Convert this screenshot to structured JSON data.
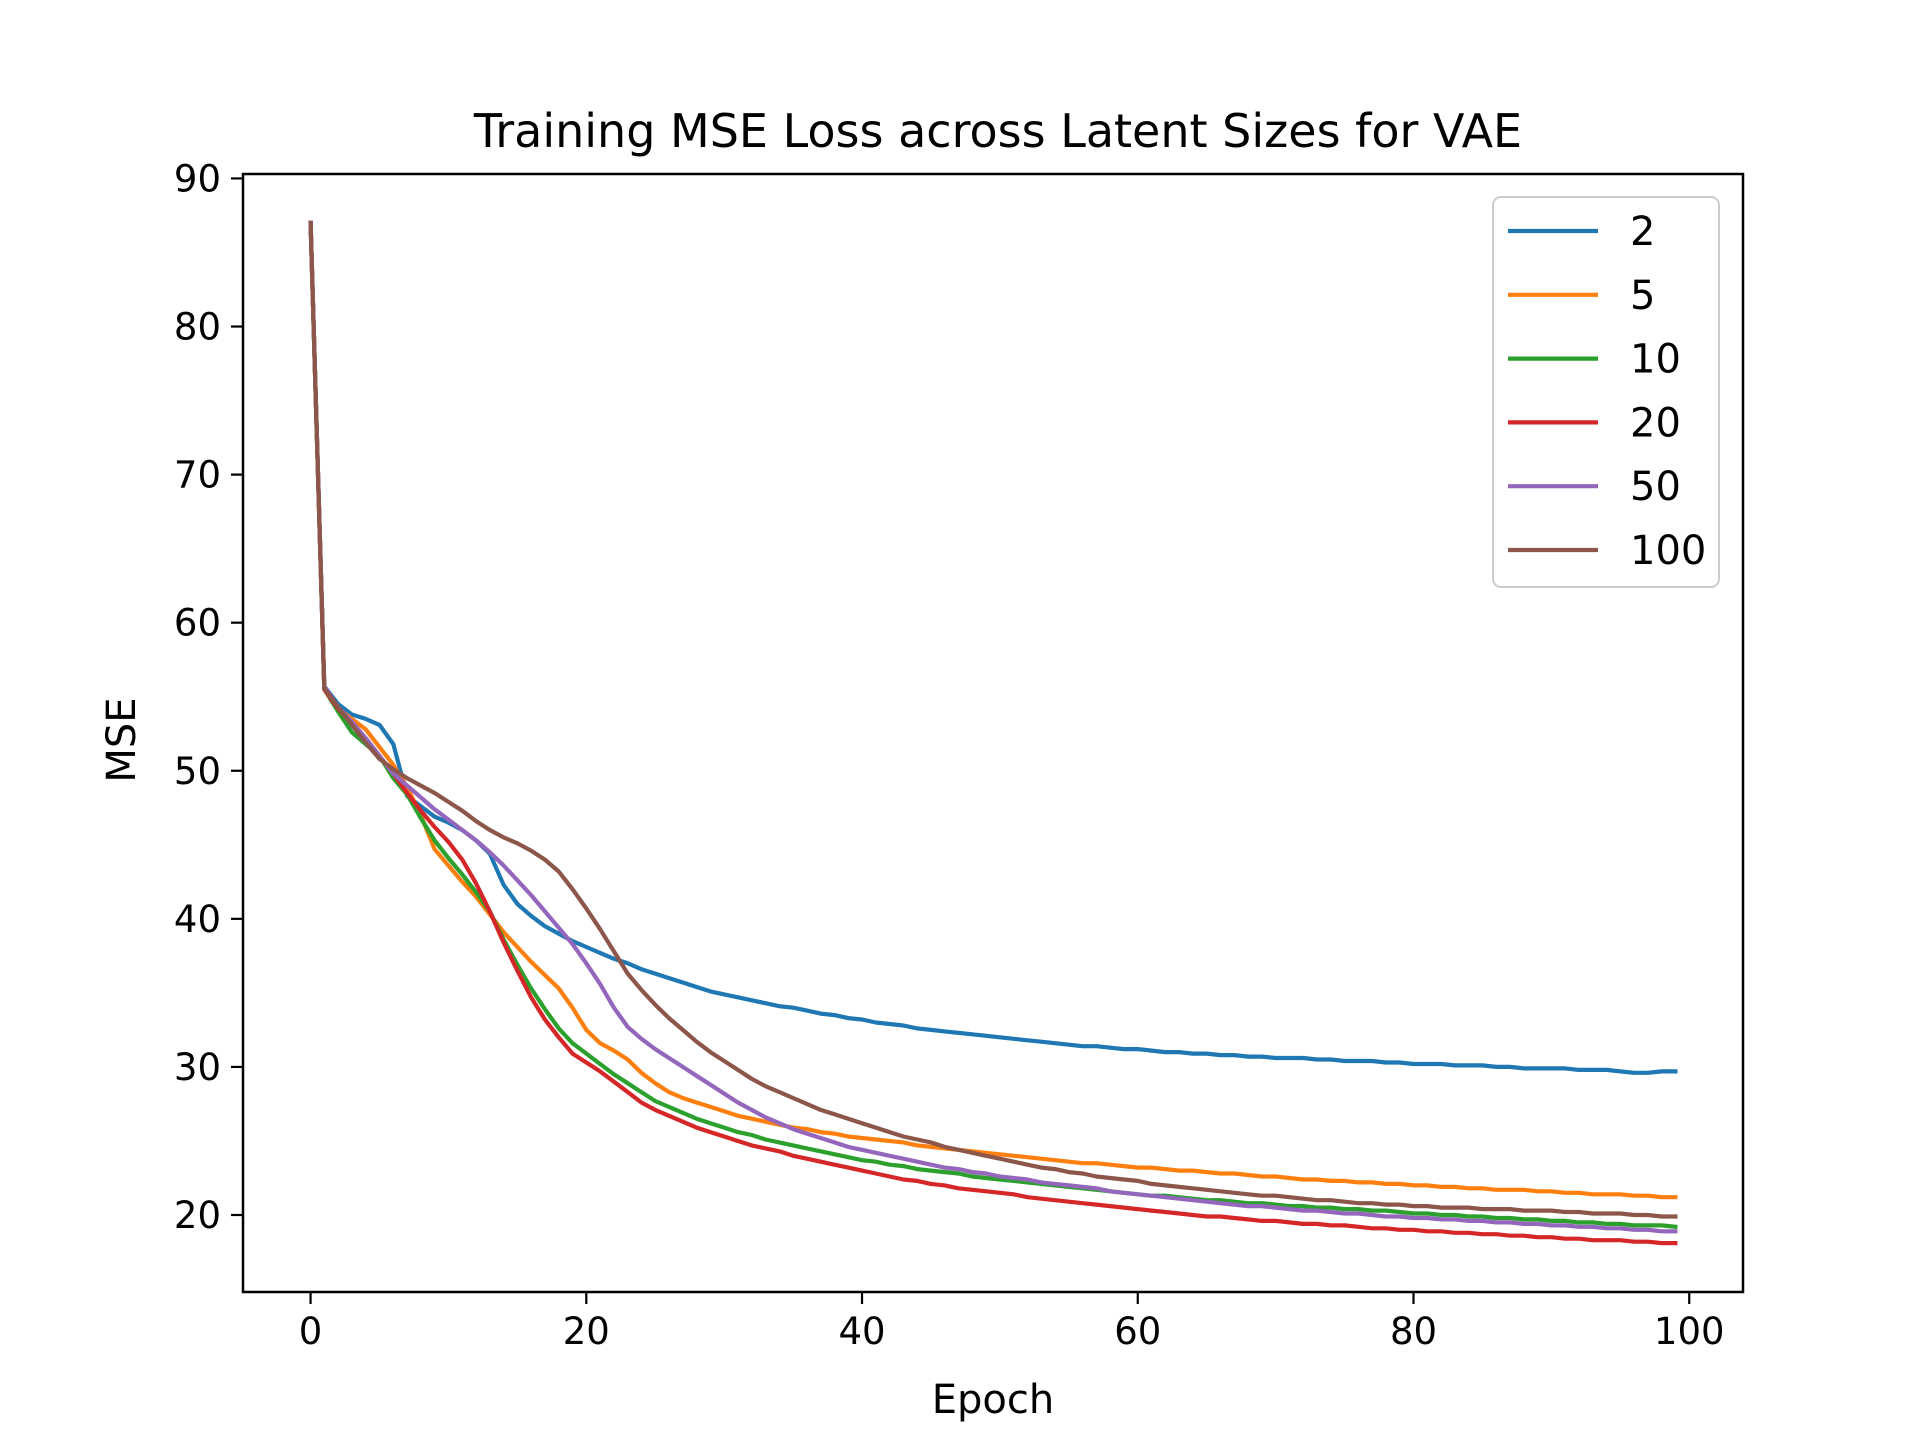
{
  "chart_data": {
    "type": "line",
    "title": "Training MSE Loss across Latent Sizes for VAE",
    "xlabel": "Epoch",
    "ylabel": "MSE",
    "xlim": [
      -4.9,
      103.9
    ],
    "ylim": [
      14.8,
      90.3
    ],
    "xticks": [
      0,
      20,
      40,
      60,
      80,
      100
    ],
    "yticks": [
      20,
      30,
      40,
      50,
      60,
      70,
      80,
      90
    ],
    "grid": false,
    "legend_position": "top-right",
    "x": {
      "start": 0,
      "end": 99,
      "step": 1
    },
    "series": [
      {
        "name": "2",
        "color": "#1f77b4",
        "values": [
          87.0,
          55.7,
          54.5,
          53.8,
          53.5,
          53.1,
          51.8,
          48.3,
          47.6,
          46.9,
          46.5,
          46.0,
          45.3,
          44.4,
          42.3,
          41.0,
          40.2,
          39.5,
          39.0,
          38.5,
          38.1,
          37.7,
          37.3,
          37.0,
          36.6,
          36.3,
          36.0,
          35.7,
          35.4,
          35.1,
          34.9,
          34.7,
          34.5,
          34.3,
          34.1,
          34.0,
          33.8,
          33.6,
          33.5,
          33.3,
          33.2,
          33.0,
          32.9,
          32.8,
          32.6,
          32.5,
          32.4,
          32.3,
          32.2,
          32.1,
          32.0,
          31.9,
          31.8,
          31.7,
          31.6,
          31.5,
          31.4,
          31.4,
          31.3,
          31.2,
          31.2,
          31.1,
          31.0,
          31.0,
          30.9,
          30.9,
          30.8,
          30.8,
          30.7,
          30.7,
          30.6,
          30.6,
          30.6,
          30.5,
          30.5,
          30.4,
          30.4,
          30.4,
          30.3,
          30.3,
          30.2,
          30.2,
          30.2,
          30.1,
          30.1,
          30.1,
          30.0,
          30.0,
          29.9,
          29.9,
          29.9,
          29.9,
          29.8,
          29.8,
          29.8,
          29.7,
          29.6,
          29.6,
          29.7,
          29.7
        ]
      },
      {
        "name": "5",
        "color": "#ff7f0e",
        "values": [
          87.0,
          55.5,
          54.2,
          53.5,
          52.8,
          51.6,
          50.4,
          48.9,
          47.0,
          44.7,
          43.6,
          42.5,
          41.5,
          40.3,
          39.1,
          38.1,
          37.1,
          36.2,
          35.3,
          34.0,
          32.5,
          31.6,
          31.1,
          30.5,
          29.6,
          28.9,
          28.3,
          27.9,
          27.6,
          27.3,
          27.0,
          26.7,
          26.5,
          26.3,
          26.1,
          25.9,
          25.8,
          25.6,
          25.5,
          25.3,
          25.2,
          25.1,
          25.0,
          24.9,
          24.7,
          24.6,
          24.5,
          24.4,
          24.3,
          24.2,
          24.1,
          24.0,
          23.9,
          23.8,
          23.7,
          23.6,
          23.5,
          23.5,
          23.4,
          23.3,
          23.2,
          23.2,
          23.1,
          23.0,
          23.0,
          22.9,
          22.8,
          22.8,
          22.7,
          22.6,
          22.6,
          22.5,
          22.4,
          22.4,
          22.3,
          22.3,
          22.2,
          22.2,
          22.1,
          22.1,
          22.0,
          22.0,
          21.9,
          21.9,
          21.8,
          21.8,
          21.7,
          21.7,
          21.7,
          21.6,
          21.6,
          21.5,
          21.5,
          21.4,
          21.4,
          21.4,
          21.3,
          21.3,
          21.2,
          21.2
        ]
      },
      {
        "name": "10",
        "color": "#2ca02c",
        "values": [
          87.0,
          55.5,
          54.0,
          52.6,
          51.8,
          51.0,
          49.5,
          48.4,
          46.8,
          45.3,
          44.1,
          43.0,
          41.8,
          40.5,
          38.6,
          36.9,
          35.3,
          33.9,
          32.6,
          31.6,
          30.9,
          30.2,
          29.5,
          28.9,
          28.3,
          27.7,
          27.3,
          26.9,
          26.5,
          26.2,
          25.9,
          25.6,
          25.4,
          25.1,
          24.9,
          24.7,
          24.5,
          24.3,
          24.1,
          23.9,
          23.7,
          23.6,
          23.4,
          23.3,
          23.1,
          23.0,
          22.9,
          22.8,
          22.6,
          22.5,
          22.4,
          22.3,
          22.2,
          22.1,
          22.0,
          21.9,
          21.8,
          21.7,
          21.6,
          21.5,
          21.4,
          21.3,
          21.3,
          21.2,
          21.1,
          21.0,
          21.0,
          20.9,
          20.8,
          20.8,
          20.7,
          20.6,
          20.6,
          20.5,
          20.5,
          20.4,
          20.4,
          20.3,
          20.3,
          20.2,
          20.1,
          20.1,
          20.0,
          20.0,
          19.9,
          19.9,
          19.8,
          19.8,
          19.7,
          19.7,
          19.6,
          19.6,
          19.5,
          19.5,
          19.4,
          19.4,
          19.3,
          19.3,
          19.3,
          19.2
        ]
      },
      {
        "name": "20",
        "color": "#d62728",
        "values": [
          87.0,
          55.5,
          54.2,
          53.2,
          52.2,
          51.0,
          49.8,
          48.5,
          47.3,
          46.2,
          45.2,
          44.0,
          42.4,
          40.5,
          38.4,
          36.5,
          34.7,
          33.2,
          32.0,
          30.9,
          30.3,
          29.7,
          29.0,
          28.3,
          27.6,
          27.1,
          26.7,
          26.3,
          25.9,
          25.6,
          25.3,
          25.0,
          24.7,
          24.5,
          24.3,
          24.0,
          23.8,
          23.6,
          23.4,
          23.2,
          23.0,
          22.8,
          22.6,
          22.4,
          22.3,
          22.1,
          22.0,
          21.8,
          21.7,
          21.6,
          21.5,
          21.4,
          21.2,
          21.1,
          21.0,
          20.9,
          20.8,
          20.7,
          20.6,
          20.5,
          20.4,
          20.3,
          20.2,
          20.1,
          20.0,
          19.9,
          19.9,
          19.8,
          19.7,
          19.6,
          19.6,
          19.5,
          19.4,
          19.4,
          19.3,
          19.3,
          19.2,
          19.1,
          19.1,
          19.0,
          19.0,
          18.9,
          18.9,
          18.8,
          18.8,
          18.7,
          18.7,
          18.6,
          18.6,
          18.5,
          18.5,
          18.4,
          18.4,
          18.3,
          18.3,
          18.3,
          18.2,
          18.2,
          18.1,
          18.1
        ]
      },
      {
        "name": "50",
        "color": "#9467bd",
        "values": [
          87.0,
          55.7,
          54.3,
          53.3,
          52.2,
          51.0,
          49.8,
          49.0,
          48.2,
          47.4,
          46.7,
          46.0,
          45.3,
          44.5,
          43.6,
          42.6,
          41.6,
          40.5,
          39.4,
          38.3,
          37.0,
          35.6,
          34.0,
          32.7,
          31.9,
          31.2,
          30.6,
          30.0,
          29.4,
          28.8,
          28.2,
          27.6,
          27.1,
          26.6,
          26.2,
          25.8,
          25.5,
          25.2,
          24.9,
          24.6,
          24.4,
          24.2,
          24.0,
          23.8,
          23.6,
          23.4,
          23.2,
          23.1,
          22.9,
          22.8,
          22.6,
          22.5,
          22.4,
          22.2,
          22.1,
          22.0,
          21.9,
          21.8,
          21.6,
          21.5,
          21.4,
          21.3,
          21.2,
          21.1,
          21.0,
          20.9,
          20.8,
          20.7,
          20.6,
          20.6,
          20.5,
          20.4,
          20.3,
          20.3,
          20.2,
          20.1,
          20.1,
          20.0,
          19.9,
          19.9,
          19.8,
          19.8,
          19.7,
          19.7,
          19.6,
          19.6,
          19.5,
          19.5,
          19.4,
          19.4,
          19.3,
          19.3,
          19.2,
          19.2,
          19.1,
          19.1,
          19.0,
          19.0,
          18.9,
          18.9
        ]
      },
      {
        "name": "100",
        "color": "#8c564b",
        "values": [
          87.0,
          55.6,
          54.3,
          53.1,
          51.9,
          50.8,
          50.1,
          49.5,
          49.0,
          48.5,
          47.9,
          47.3,
          46.6,
          46.0,
          45.5,
          45.1,
          44.6,
          44.0,
          43.2,
          42.0,
          40.7,
          39.3,
          37.8,
          36.3,
          35.2,
          34.2,
          33.3,
          32.5,
          31.7,
          31.0,
          30.4,
          29.8,
          29.2,
          28.7,
          28.3,
          27.9,
          27.5,
          27.1,
          26.8,
          26.5,
          26.2,
          25.9,
          25.6,
          25.3,
          25.1,
          24.9,
          24.6,
          24.4,
          24.2,
          24.0,
          23.8,
          23.6,
          23.4,
          23.2,
          23.1,
          22.9,
          22.8,
          22.6,
          22.5,
          22.4,
          22.3,
          22.1,
          22.0,
          21.9,
          21.8,
          21.7,
          21.6,
          21.5,
          21.4,
          21.3,
          21.3,
          21.2,
          21.1,
          21.0,
          21.0,
          20.9,
          20.8,
          20.8,
          20.7,
          20.7,
          20.6,
          20.6,
          20.5,
          20.5,
          20.5,
          20.4,
          20.4,
          20.4,
          20.3,
          20.3,
          20.3,
          20.2,
          20.2,
          20.1,
          20.1,
          20.1,
          20.0,
          20.0,
          19.9,
          19.9
        ]
      }
    ]
  }
}
